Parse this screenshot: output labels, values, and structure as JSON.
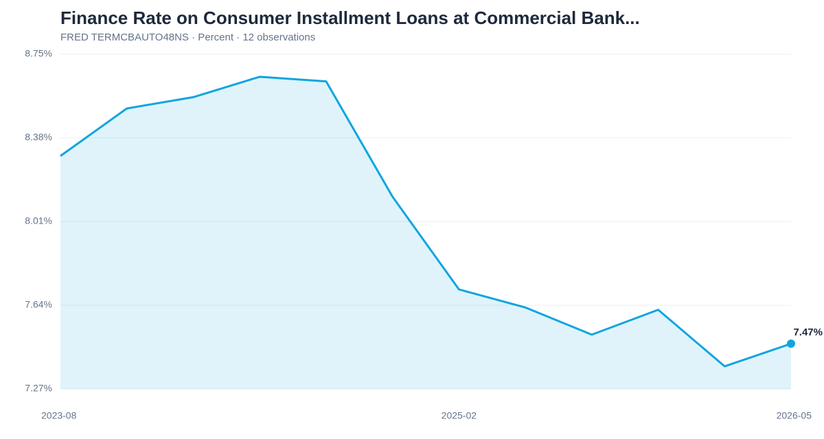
{
  "chart_data": {
    "type": "area",
    "title": "Finance Rate on Consumer Installment Loans at Commercial Bank...",
    "subtitle": "FRED TERMCBAUTO48NS · Percent · 12 observations",
    "categories": [
      "2023-08",
      null,
      null,
      null,
      null,
      null,
      "2025-02",
      null,
      null,
      null,
      null,
      "2026-05"
    ],
    "series": [
      {
        "name": "TERMCBAUTO48NS",
        "color": "#0ea5e0",
        "values": [
          8.3,
          8.51,
          8.56,
          8.65,
          8.63,
          8.12,
          7.71,
          7.63,
          7.51,
          7.62,
          7.37,
          7.47
        ],
        "value_labels": [
          null,
          null,
          null,
          null,
          null,
          null,
          null,
          null,
          null,
          null,
          null,
          "7.47%"
        ]
      }
    ],
    "ylim": [
      7.27,
      8.75
    ],
    "yticks": [
      {
        "value": 7.27,
        "label": "7.27%"
      },
      {
        "value": 7.64,
        "label": "7.64%"
      },
      {
        "value": 8.01,
        "label": "8.01%"
      },
      {
        "value": 8.38,
        "label": "8.38%"
      },
      {
        "value": 8.75,
        "label": "8.75%"
      }
    ],
    "grid": true
  }
}
